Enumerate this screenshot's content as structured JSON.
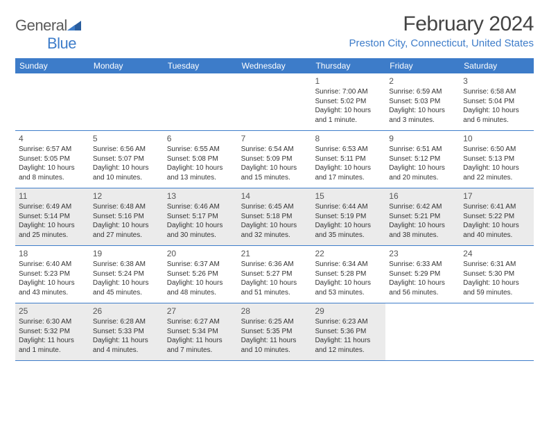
{
  "header": {
    "logo_text1": "General",
    "logo_text2": "Blue",
    "month_title": "February 2024",
    "location": "Preston City, Connecticut, United States"
  },
  "style": {
    "brand_blue": "#3d7cc9",
    "shaded_bg": "#ebebeb",
    "text_color": "#333333",
    "title_color": "#444444",
    "day_font_size": 10,
    "weekday_font_size": 12,
    "month_title_font_size": 30,
    "location_font_size": 15
  },
  "weekdays": [
    "Sunday",
    "Monday",
    "Tuesday",
    "Wednesday",
    "Thursday",
    "Friday",
    "Saturday"
  ],
  "weeks": [
    [
      {
        "day": "",
        "sunrise": "",
        "sunset": "",
        "daylight": "",
        "shaded": false
      },
      {
        "day": "",
        "sunrise": "",
        "sunset": "",
        "daylight": "",
        "shaded": false
      },
      {
        "day": "",
        "sunrise": "",
        "sunset": "",
        "daylight": "",
        "shaded": false
      },
      {
        "day": "",
        "sunrise": "",
        "sunset": "",
        "daylight": "",
        "shaded": false
      },
      {
        "day": "1",
        "sunrise": "Sunrise: 7:00 AM",
        "sunset": "Sunset: 5:02 PM",
        "daylight": "Daylight: 10 hours and 1 minute.",
        "shaded": false
      },
      {
        "day": "2",
        "sunrise": "Sunrise: 6:59 AM",
        "sunset": "Sunset: 5:03 PM",
        "daylight": "Daylight: 10 hours and 3 minutes.",
        "shaded": false
      },
      {
        "day": "3",
        "sunrise": "Sunrise: 6:58 AM",
        "sunset": "Sunset: 5:04 PM",
        "daylight": "Daylight: 10 hours and 6 minutes.",
        "shaded": false
      }
    ],
    [
      {
        "day": "4",
        "sunrise": "Sunrise: 6:57 AM",
        "sunset": "Sunset: 5:05 PM",
        "daylight": "Daylight: 10 hours and 8 minutes.",
        "shaded": false
      },
      {
        "day": "5",
        "sunrise": "Sunrise: 6:56 AM",
        "sunset": "Sunset: 5:07 PM",
        "daylight": "Daylight: 10 hours and 10 minutes.",
        "shaded": false
      },
      {
        "day": "6",
        "sunrise": "Sunrise: 6:55 AM",
        "sunset": "Sunset: 5:08 PM",
        "daylight": "Daylight: 10 hours and 13 minutes.",
        "shaded": false
      },
      {
        "day": "7",
        "sunrise": "Sunrise: 6:54 AM",
        "sunset": "Sunset: 5:09 PM",
        "daylight": "Daylight: 10 hours and 15 minutes.",
        "shaded": false
      },
      {
        "day": "8",
        "sunrise": "Sunrise: 6:53 AM",
        "sunset": "Sunset: 5:11 PM",
        "daylight": "Daylight: 10 hours and 17 minutes.",
        "shaded": false
      },
      {
        "day": "9",
        "sunrise": "Sunrise: 6:51 AM",
        "sunset": "Sunset: 5:12 PM",
        "daylight": "Daylight: 10 hours and 20 minutes.",
        "shaded": false
      },
      {
        "day": "10",
        "sunrise": "Sunrise: 6:50 AM",
        "sunset": "Sunset: 5:13 PM",
        "daylight": "Daylight: 10 hours and 22 minutes.",
        "shaded": false
      }
    ],
    [
      {
        "day": "11",
        "sunrise": "Sunrise: 6:49 AM",
        "sunset": "Sunset: 5:14 PM",
        "daylight": "Daylight: 10 hours and 25 minutes.",
        "shaded": true
      },
      {
        "day": "12",
        "sunrise": "Sunrise: 6:48 AM",
        "sunset": "Sunset: 5:16 PM",
        "daylight": "Daylight: 10 hours and 27 minutes.",
        "shaded": true
      },
      {
        "day": "13",
        "sunrise": "Sunrise: 6:46 AM",
        "sunset": "Sunset: 5:17 PM",
        "daylight": "Daylight: 10 hours and 30 minutes.",
        "shaded": true
      },
      {
        "day": "14",
        "sunrise": "Sunrise: 6:45 AM",
        "sunset": "Sunset: 5:18 PM",
        "daylight": "Daylight: 10 hours and 32 minutes.",
        "shaded": true
      },
      {
        "day": "15",
        "sunrise": "Sunrise: 6:44 AM",
        "sunset": "Sunset: 5:19 PM",
        "daylight": "Daylight: 10 hours and 35 minutes.",
        "shaded": true
      },
      {
        "day": "16",
        "sunrise": "Sunrise: 6:42 AM",
        "sunset": "Sunset: 5:21 PM",
        "daylight": "Daylight: 10 hours and 38 minutes.",
        "shaded": true
      },
      {
        "day": "17",
        "sunrise": "Sunrise: 6:41 AM",
        "sunset": "Sunset: 5:22 PM",
        "daylight": "Daylight: 10 hours and 40 minutes.",
        "shaded": true
      }
    ],
    [
      {
        "day": "18",
        "sunrise": "Sunrise: 6:40 AM",
        "sunset": "Sunset: 5:23 PM",
        "daylight": "Daylight: 10 hours and 43 minutes.",
        "shaded": false
      },
      {
        "day": "19",
        "sunrise": "Sunrise: 6:38 AM",
        "sunset": "Sunset: 5:24 PM",
        "daylight": "Daylight: 10 hours and 45 minutes.",
        "shaded": false
      },
      {
        "day": "20",
        "sunrise": "Sunrise: 6:37 AM",
        "sunset": "Sunset: 5:26 PM",
        "daylight": "Daylight: 10 hours and 48 minutes.",
        "shaded": false
      },
      {
        "day": "21",
        "sunrise": "Sunrise: 6:36 AM",
        "sunset": "Sunset: 5:27 PM",
        "daylight": "Daylight: 10 hours and 51 minutes.",
        "shaded": false
      },
      {
        "day": "22",
        "sunrise": "Sunrise: 6:34 AM",
        "sunset": "Sunset: 5:28 PM",
        "daylight": "Daylight: 10 hours and 53 minutes.",
        "shaded": false
      },
      {
        "day": "23",
        "sunrise": "Sunrise: 6:33 AM",
        "sunset": "Sunset: 5:29 PM",
        "daylight": "Daylight: 10 hours and 56 minutes.",
        "shaded": false
      },
      {
        "day": "24",
        "sunrise": "Sunrise: 6:31 AM",
        "sunset": "Sunset: 5:30 PM",
        "daylight": "Daylight: 10 hours and 59 minutes.",
        "shaded": false
      }
    ],
    [
      {
        "day": "25",
        "sunrise": "Sunrise: 6:30 AM",
        "sunset": "Sunset: 5:32 PM",
        "daylight": "Daylight: 11 hours and 1 minute.",
        "shaded": true
      },
      {
        "day": "26",
        "sunrise": "Sunrise: 6:28 AM",
        "sunset": "Sunset: 5:33 PM",
        "daylight": "Daylight: 11 hours and 4 minutes.",
        "shaded": true
      },
      {
        "day": "27",
        "sunrise": "Sunrise: 6:27 AM",
        "sunset": "Sunset: 5:34 PM",
        "daylight": "Daylight: 11 hours and 7 minutes.",
        "shaded": true
      },
      {
        "day": "28",
        "sunrise": "Sunrise: 6:25 AM",
        "sunset": "Sunset: 5:35 PM",
        "daylight": "Daylight: 11 hours and 10 minutes.",
        "shaded": true
      },
      {
        "day": "29",
        "sunrise": "Sunrise: 6:23 AM",
        "sunset": "Sunset: 5:36 PM",
        "daylight": "Daylight: 11 hours and 12 minutes.",
        "shaded": true
      },
      {
        "day": "",
        "sunrise": "",
        "sunset": "",
        "daylight": "",
        "shaded": false
      },
      {
        "day": "",
        "sunrise": "",
        "sunset": "",
        "daylight": "",
        "shaded": false
      }
    ]
  ]
}
